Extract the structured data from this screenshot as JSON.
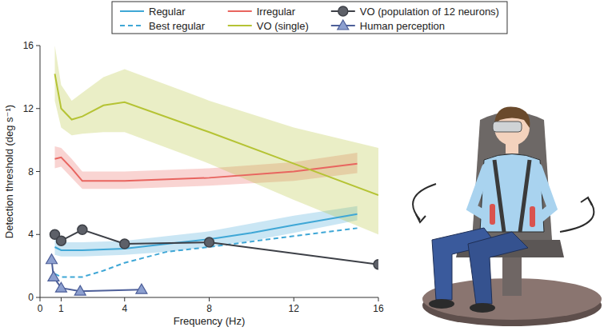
{
  "chart_data": {
    "type": "line",
    "x_label": "Frequency (Hz)",
    "y_label": "Detection threshold (deg s⁻¹)",
    "xlim": [
      0,
      16
    ],
    "ylim": [
      0,
      16
    ],
    "xticks": [
      0,
      1,
      4,
      8,
      12,
      16
    ],
    "yticks": [
      0,
      4,
      8,
      12,
      16
    ],
    "grid": false,
    "legend": "top",
    "series": [
      {
        "name": "Regular",
        "color": "#3fa7d6",
        "line_style": "solid",
        "marker": "none",
        "x": [
          0.7,
          1,
          2,
          4,
          6,
          8,
          10,
          12,
          15
        ],
        "values": [
          3.2,
          3.0,
          3.0,
          3.1,
          3.4,
          3.7,
          4.1,
          4.6,
          5.3
        ],
        "lower": [
          2.7,
          2.6,
          2.6,
          2.7,
          2.9,
          3.2,
          3.6,
          4.1,
          4.9
        ],
        "upper": [
          3.8,
          3.5,
          3.5,
          3.6,
          3.9,
          4.2,
          4.7,
          5.2,
          5.8
        ]
      },
      {
        "name": "Best regular",
        "color": "#3fa7d6",
        "line_style": "dashed",
        "marker": "none",
        "x": [
          0.7,
          1,
          2,
          3,
          4,
          6,
          8,
          12,
          15
        ],
        "values": [
          1.5,
          1.3,
          1.3,
          1.7,
          2.2,
          2.9,
          3.2,
          3.9,
          4.4
        ]
      },
      {
        "name": "Irregular",
        "color": "#e8645f",
        "line_style": "solid",
        "marker": "none",
        "x": [
          0.7,
          1,
          1.5,
          2,
          4,
          8,
          12,
          15
        ],
        "values": [
          8.8,
          8.9,
          8.2,
          7.4,
          7.4,
          7.6,
          8.0,
          8.5
        ],
        "lower": [
          8.2,
          8.3,
          7.6,
          6.9,
          6.9,
          7.1,
          7.4,
          7.9
        ],
        "upper": [
          9.6,
          9.5,
          8.8,
          8.0,
          8.0,
          8.2,
          8.6,
          9.2
        ]
      },
      {
        "name": "VO (single)",
        "color": "#b5c334",
        "line_style": "solid",
        "marker": "none",
        "x": [
          0.7,
          1,
          1.5,
          2,
          3,
          4,
          8,
          12,
          16
        ],
        "values": [
          14.2,
          12.0,
          11.3,
          11.5,
          12.2,
          12.4,
          10.5,
          8.5,
          6.5
        ],
        "lower": [
          12.5,
          10.8,
          10.3,
          10.4,
          10.5,
          10.5,
          8.5,
          6.2,
          4.0
        ],
        "upper": [
          16.0,
          13.5,
          12.5,
          13.0,
          14.0,
          14.5,
          12.5,
          10.8,
          9.5
        ]
      },
      {
        "name": "VO (population of 12 neurons)",
        "color": "#3d4047",
        "line_style": "solid",
        "marker": "circle",
        "x": [
          0.7,
          1,
          2,
          4,
          8,
          16
        ],
        "values": [
          4.0,
          3.6,
          4.3,
          3.4,
          3.5,
          2.1
        ]
      },
      {
        "name": "Human perception",
        "color": "#4d5f99",
        "line_style": "solid",
        "marker": "triangle",
        "x": [
          0.55,
          0.64,
          1,
          1.9,
          4.8
        ],
        "values": [
          2.4,
          1.3,
          0.6,
          0.4,
          0.5
        ]
      }
    ]
  }
}
